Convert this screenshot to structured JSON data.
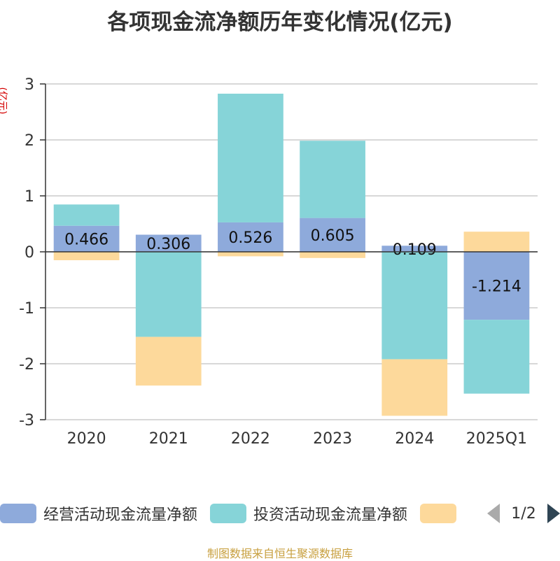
{
  "title": "各项现金流净额历年变化情况(亿元)",
  "unit": "(亿元)",
  "footer": "制图数据来自恒生聚源数据库",
  "pager": "1/2",
  "colors": {
    "operating": "#8eaadb",
    "investing": "#86d4d8",
    "financing": "#fdd99b"
  },
  "chart_data": {
    "type": "bar",
    "stacked": true,
    "title": "各项现金流净额历年变化情况(亿元)",
    "ylabel": "(亿元)",
    "ylim": [
      -3,
      3
    ],
    "yticks": [
      3,
      2,
      1,
      0,
      -1,
      -2,
      -3
    ],
    "categories": [
      "2020",
      "2021",
      "2022",
      "2023",
      "2024",
      "2025Q1"
    ],
    "series": [
      {
        "name": "经营活动现金流量净额",
        "color": "#8eaadb",
        "values": [
          0.466,
          0.306,
          0.526,
          0.605,
          0.109,
          -1.214
        ],
        "labels": [
          "0.466",
          "0.306",
          "0.526",
          "0.605",
          "0.109",
          "-1.214"
        ]
      },
      {
        "name": "投资活动现金流量净额",
        "color": "#86d4d8",
        "values": [
          0.38,
          -1.52,
          2.3,
          1.38,
          -1.92,
          -1.32
        ]
      },
      {
        "name": "",
        "color": "#fdd99b",
        "values": [
          -0.15,
          -0.87,
          -0.08,
          -0.11,
          -1.01,
          0.36
        ]
      }
    ],
    "legend": [
      "经营活动现金流量净额",
      "投资活动现金流量净额",
      ""
    ],
    "grid": true
  }
}
